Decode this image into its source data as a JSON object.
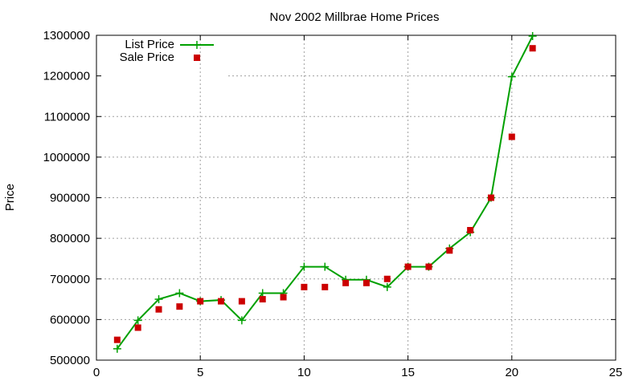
{
  "chart_data": {
    "type": "line",
    "title": "Nov 2002 Millbrae Home Prices",
    "xlabel": "",
    "ylabel": "Price",
    "xlim": [
      0,
      25
    ],
    "ylim": [
      500000,
      1300000
    ],
    "xticks": [
      0,
      5,
      10,
      15,
      20,
      25
    ],
    "yticks": [
      500000,
      600000,
      700000,
      800000,
      900000,
      1000000,
      1100000,
      1200000,
      1300000
    ],
    "grid": true,
    "legend_position": "top-left",
    "series": [
      {
        "name": "List Price",
        "style": "line-with-plus-markers",
        "color": "#00a000",
        "x": [
          1,
          2,
          3,
          4,
          5,
          6,
          7,
          8,
          9,
          10,
          11,
          12,
          13,
          14,
          15,
          16,
          17,
          18,
          19,
          20,
          21
        ],
        "y": [
          528000,
          598000,
          650000,
          665000,
          645000,
          648000,
          598000,
          665000,
          665000,
          730000,
          730000,
          698000,
          698000,
          680000,
          730000,
          730000,
          775000,
          815000,
          900000,
          1198000,
          1298000
        ]
      },
      {
        "name": "Sale Price",
        "style": "square-points",
        "color": "#cc0000",
        "x": [
          1,
          2,
          3,
          4,
          5,
          6,
          7,
          8,
          9,
          10,
          11,
          12,
          13,
          14,
          15,
          16,
          17,
          18,
          19,
          20,
          21
        ],
        "y": [
          550000,
          580000,
          625000,
          632000,
          645000,
          645000,
          645000,
          650000,
          655000,
          680000,
          680000,
          690000,
          690000,
          700000,
          730000,
          730000,
          770000,
          820000,
          900000,
          1050000,
          1268000
        ]
      }
    ]
  }
}
